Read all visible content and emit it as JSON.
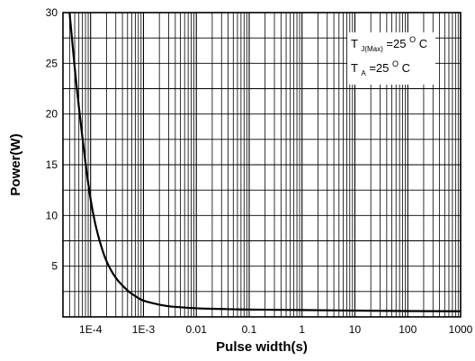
{
  "chart_data": {
    "type": "line",
    "xlabel": "Pulse width(s)",
    "ylabel": "Power(W)",
    "x_scale": "log",
    "xlim": [
      3e-05,
      1000
    ],
    "ylim": [
      0,
      30
    ],
    "grid": true,
    "x_ticks": [
      {
        "value": 0.0001,
        "label": "1E-4"
      },
      {
        "value": 0.001,
        "label": "1E-3"
      },
      {
        "value": 0.01,
        "label": "0.01"
      },
      {
        "value": 0.1,
        "label": "0.1"
      },
      {
        "value": 1,
        "label": "1"
      },
      {
        "value": 10,
        "label": "10"
      },
      {
        "value": 100,
        "label": "100"
      },
      {
        "value": 1000,
        "label": "1000"
      }
    ],
    "y_ticks": [
      {
        "value": 5,
        "label": "5"
      },
      {
        "value": 10,
        "label": "10"
      },
      {
        "value": 15,
        "label": "15"
      },
      {
        "value": 20,
        "label": "20"
      },
      {
        "value": 25,
        "label": "25"
      },
      {
        "value": 30,
        "label": "30"
      }
    ],
    "series": [
      {
        "color": "#000000",
        "x": [
          4e-05,
          5e-05,
          6e-05,
          8e-05,
          0.0001,
          0.00012,
          0.00015,
          0.0002,
          0.0003,
          0.0005,
          0.0007,
          0.001,
          0.002,
          0.003,
          0.005,
          0.01,
          0.02,
          0.05,
          0.1,
          0.3,
          1,
          10,
          100,
          1000
        ],
        "y": [
          30,
          24.6,
          20.7,
          15.2,
          11.6,
          9.4,
          7.4,
          5.5,
          3.85,
          2.6,
          2.05,
          1.6,
          1.2,
          1.05,
          0.95,
          0.85,
          0.8,
          0.75,
          0.72,
          0.7,
          0.68,
          0.62,
          0.58,
          0.55
        ]
      }
    ],
    "annotations": [
      {
        "main": "T",
        "sub": "J(Max)",
        "rest": "=25",
        "sup": "O",
        "unit": "C"
      },
      {
        "main": "T",
        "sub": "A",
        "rest": "=25",
        "sup": "O",
        "unit": "C"
      }
    ]
  }
}
